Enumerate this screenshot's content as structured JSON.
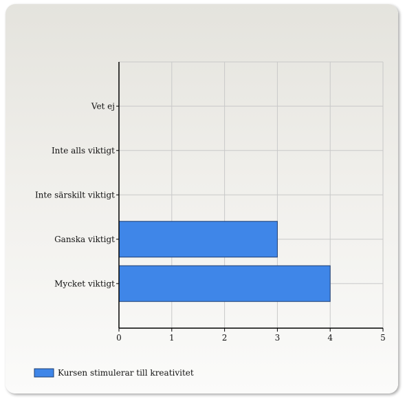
{
  "chart_data": {
    "type": "bar",
    "orientation": "horizontal",
    "categories": [
      "Mycket viktigt",
      "Ganska viktigt",
      "Inte särskilt viktigt",
      "Inte alls viktigt",
      "Vet ej"
    ],
    "series": [
      {
        "name": "Kursen stimulerar till kreativitet",
        "values": [
          4,
          3,
          0,
          0,
          0
        ]
      }
    ],
    "xlim": [
      0,
      5
    ],
    "xticks": [
      "0",
      "1",
      "2",
      "3",
      "4",
      "5"
    ],
    "grid": true,
    "legend_position": "bottom-left",
    "colors": {
      "bar": "#3f86e8",
      "bar_stroke": "#1e3d70",
      "grid": "#c8c8c8",
      "axis": "#000000"
    }
  }
}
